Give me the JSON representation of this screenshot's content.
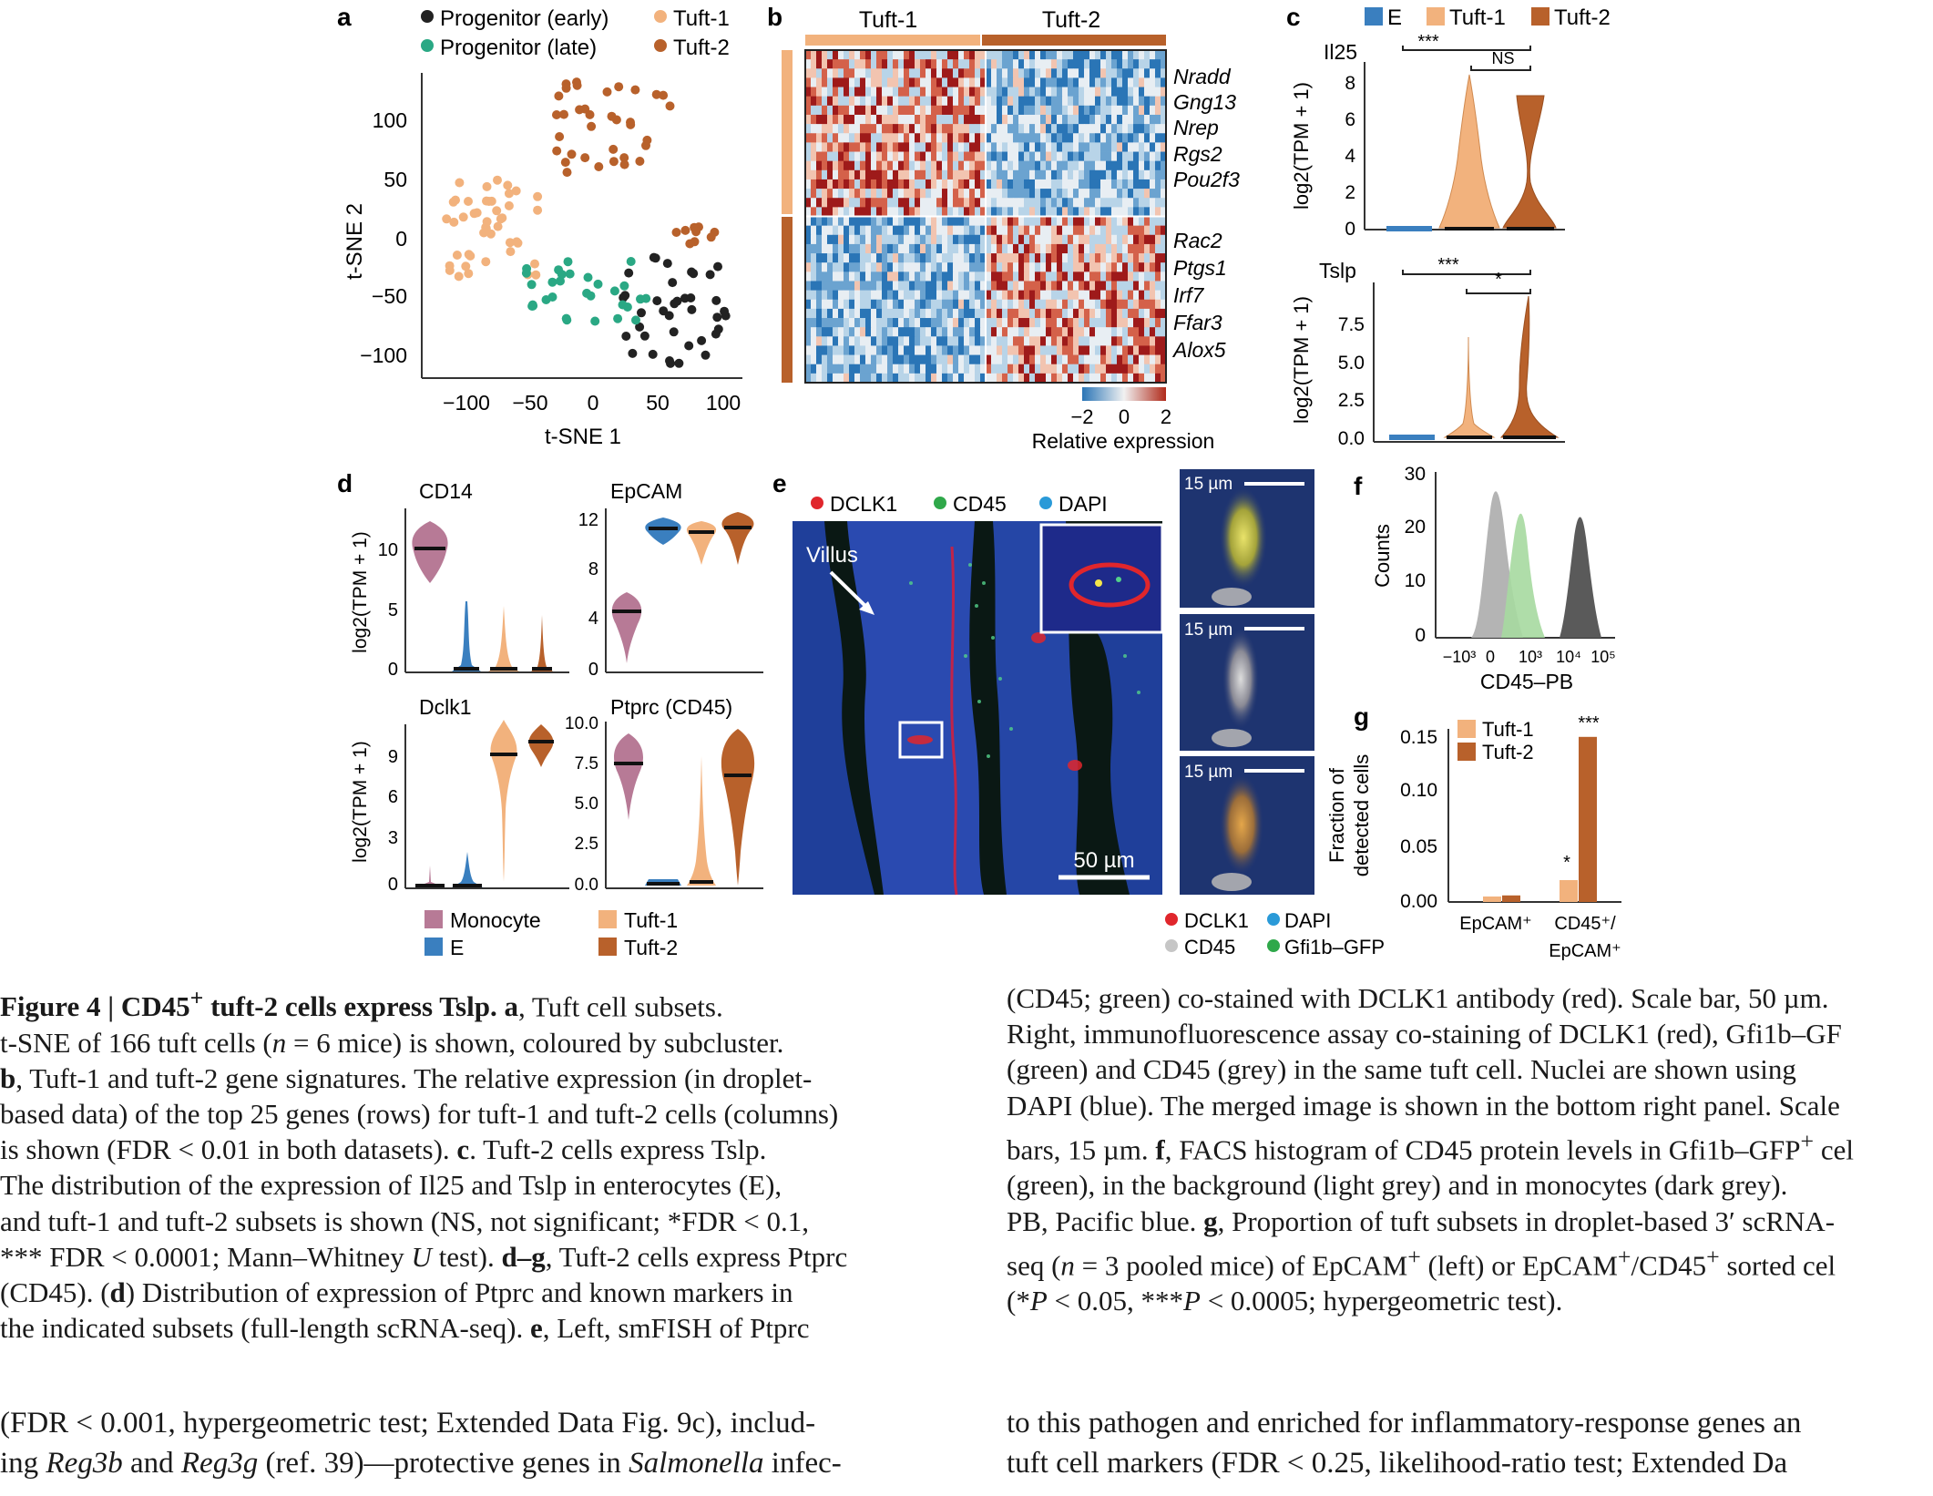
{
  "panel_letters": {
    "a": "a",
    "b": "b",
    "c": "c",
    "d": "d",
    "e": "e",
    "f": "f",
    "g": "g"
  },
  "colors": {
    "progenitor_early": "#222222",
    "progenitor_late": "#2aa884",
    "tuft1": "#f2b27d",
    "tuft2": "#b8612b",
    "enterocyte": "#3a7fbf",
    "monocyte": "#b77a96",
    "heat_low": "#2a75b6",
    "heat_mid": "#dce8f0",
    "heat_high": "#9e1a1a"
  },
  "panel_a": {
    "legend": [
      "Progenitor (early)",
      "Tuft-1",
      "Progenitor (late)",
      "Tuft-2"
    ],
    "xlabel": "t-SNE 1",
    "ylabel": "t-SNE 2",
    "xticks": [
      "−100",
      "−50",
      "0",
      "50",
      "100"
    ],
    "yticks": [
      "100",
      "50",
      "0",
      "−50",
      "−100"
    ]
  },
  "panel_b": {
    "col_groups": [
      "Tuft-1",
      "Tuft-2"
    ],
    "genes_tuft1": [
      "Nradd",
      "Gng13",
      "Nrep",
      "Rgs2",
      "Pou2f3"
    ],
    "genes_tuft2": [
      "Rac2",
      "Ptgs1",
      "Irf7",
      "Ffar3",
      "Alox5"
    ],
    "scale_ticks": [
      "−2",
      "0",
      "2"
    ],
    "scale_label": "Relative expression"
  },
  "panel_c": {
    "legend": [
      "E",
      "Tuft-1",
      "Tuft-2"
    ],
    "top_title": "Il25",
    "bottom_title": "Tslp",
    "ylabel": "log2(TPM + 1)",
    "top_yticks": [
      "8",
      "6",
      "4",
      "2",
      "0"
    ],
    "bottom_yticks": [
      "7.5",
      "5.0",
      "2.5",
      "0.0"
    ],
    "sig_top": [
      "***",
      "NS"
    ],
    "sig_bottom": [
      "***",
      "*"
    ]
  },
  "panel_d": {
    "titles": [
      "CD14",
      "EpCAM",
      "Dclk1",
      "Ptprc (CD45)"
    ],
    "ylabel": "log2(TPM + 1)",
    "cd14_ticks": [
      "10",
      "5",
      "0"
    ],
    "epcam_ticks": [
      "12",
      "8",
      "4",
      "0"
    ],
    "dclk1_ticks": [
      "9",
      "6",
      "3",
      "0"
    ],
    "ptprc_ticks": [
      "10.0",
      "7.5",
      "5.0",
      "2.5",
      "0.0"
    ],
    "legend": [
      "Monocyte",
      "Tuft-1",
      "E",
      "Tuft-2"
    ]
  },
  "panel_e": {
    "legend_top": [
      "DCLK1",
      "CD45",
      "DAPI"
    ],
    "villus_label": "Villus",
    "scale_main": "50 µm",
    "scale_small": [
      "15 µm",
      "15 µm",
      "15 µm"
    ],
    "legend_bottom": [
      "DCLK1",
      "DAPI",
      "CD45",
      "Gfi1b–GFP"
    ]
  },
  "panel_f": {
    "ylabel": "Counts",
    "xlabel": "CD45–PB",
    "yticks": [
      "30",
      "20",
      "10",
      "0"
    ],
    "xticks": [
      "−10³",
      "0",
      "10³",
      "10⁴",
      "10⁵"
    ]
  },
  "panel_g": {
    "legend": [
      "Tuft-1",
      "Tuft-2"
    ],
    "ylabel_1": "Fraction of",
    "ylabel_2": "detected cells",
    "yticks": [
      "0.15",
      "0.10",
      "0.05",
      "0.00"
    ],
    "cat1": "EpCAM⁺",
    "cat2_line1": "CD45⁺/",
    "cat2_line2": "EpCAM⁺",
    "sig": [
      "*",
      "***"
    ]
  },
  "chart_data": [
    {
      "type": "bar",
      "panel": "g",
      "categories": [
        "EpCAM⁺",
        "CD45⁺/EpCAM⁺"
      ],
      "series": [
        {
          "name": "Tuft-1",
          "values": [
            0.005,
            0.02
          ]
        },
        {
          "name": "Tuft-2",
          "values": [
            0.006,
            0.151
          ]
        }
      ],
      "ylabel": "Fraction of detected cells",
      "ylim": [
        0,
        0.16
      ]
    },
    {
      "type": "area",
      "panel": "f",
      "series": [
        {
          "name": "background (light grey)",
          "peak_x": "~0",
          "peak_count": 28
        },
        {
          "name": "Gfi1b–GFP⁺ (green)",
          "peak_x": "~10³",
          "peak_count": 23
        },
        {
          "name": "monocytes (dark grey)",
          "peak_x": "~10⁴",
          "peak_count": 23
        }
      ],
      "xlabel": "CD45–PB",
      "ylabel": "Counts",
      "ylim": [
        0,
        30
      ]
    }
  ],
  "caption_left": [
    "<b>Figure 4 | CD45<sup>+</sup> tuft-2 cells express Tslp. a</b>, Tuft cell subsets.",
    "t-SNE of 166 tuft cells (<i>n</i> = 6 mice) is shown, coloured by subcluster.",
    "<b>b</b>, Tuft-1 and tuft-2 gene signatures. The relative expression (in droplet-",
    "based data) of the top 25 genes (rows) for tuft-1 and tuft-2 cells (columns)",
    "is shown (FDR &lt; 0.01 in both datasets). <b>c</b>. Tuft-2 cells express Tslp.",
    "The distribution of the expression of Il25 and Tslp in enterocytes (E),",
    "and tuft-1 and tuft-2 subsets is shown (NS, not significant; *FDR &lt; 0.1,",
    "*** FDR &lt; 0.0001; Mann–Whitney <i>U</i> test). <b>d–g</b>, Tuft-2 cells express Ptprc",
    "(CD45). (<b>d</b>) Distribution of expression of Ptprc and known markers in",
    "the indicated subsets (full-length scRNA-seq). <b>e</b>, Left, smFISH of Ptprc"
  ],
  "caption_right": [
    "(CD45; green) co-stained with DCLK1 antibody (red). Scale bar, 50 µm.",
    "Right, immunofluorescence assay co-staining of DCLK1 (red), Gfi1b–GF",
    "(green) and CD45 (grey) in the same tuft cell. Nuclei are shown using",
    "DAPI (blue). The merged image is shown in the bottom right panel. Scale",
    "bars, 15 µm. <b>f</b>, FACS histogram of CD45 protein levels in Gfi1b–GFP<sup>+</sup> cel",
    "(green), in the background (light grey) and in monocytes (dark grey).",
    "PB, Pacific blue. <b>g</b>, Proportion of tuft subsets in droplet-based 3′ scRNA-",
    "seq (<i>n</i> = 3 pooled mice) of EpCAM<sup>+</sup> (left) or EpCAM<sup>+</sup>/CD45<sup>+</sup> sorted cel",
    "(*<i>P</i> &lt; 0.05, ***<i>P</i> &lt; 0.0005; hypergeometric test)."
  ],
  "body_left": [
    "(FDR &lt; 0.001, hypergeometric test; Extended Data Fig. 9c), includ-",
    "ing <i>Reg3b</i> and <i>Reg3g</i> (ref. 39)—protective genes in <i>Salmonella</i> infec-"
  ],
  "body_right": [
    "to this pathogen and enriched for inflammatory-response genes an",
    "tuft cell markers (FDR &lt; 0.25, likelihood-ratio test; Extended Da"
  ]
}
